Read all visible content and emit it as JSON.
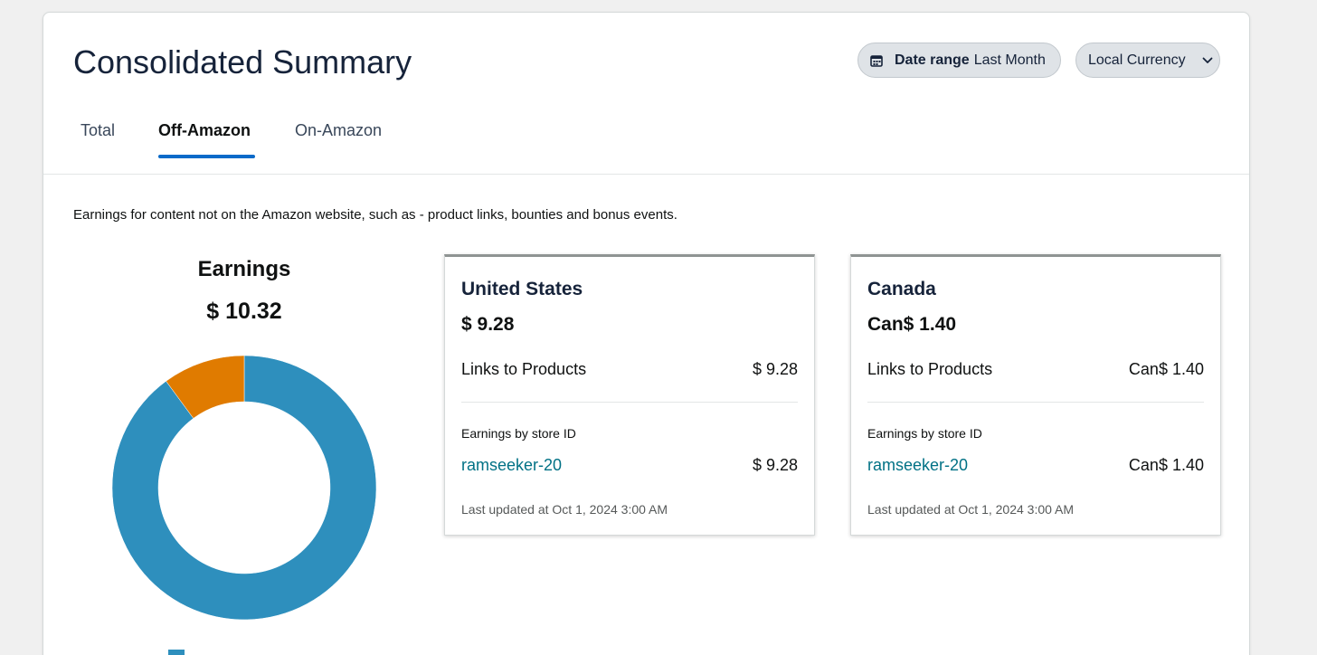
{
  "page": {
    "title": "Consolidated Summary",
    "date_range_label": "Date range",
    "date_range_value": "Last Month",
    "currency_label": "Local Currency"
  },
  "tabs": [
    {
      "label": "Total"
    },
    {
      "label": "Off-Amazon",
      "active": true
    },
    {
      "label": "On-Amazon"
    }
  ],
  "description": "Earnings for content not on the Amazon website, such as - product links, bounties and bonus events.",
  "earnings": {
    "title": "Earnings",
    "total": "$ 10.32"
  },
  "chart_data": {
    "type": "pie",
    "donut": true,
    "series": [
      {
        "value": 9.28,
        "color": "#2e8fbd"
      },
      {
        "value": 1.04,
        "color": "#e07b00"
      }
    ]
  },
  "cards": [
    {
      "name": "United States",
      "amount": "$ 9.28",
      "links_label": "Links to Products",
      "links_value": "$ 9.28",
      "store_label": "Earnings by store ID",
      "store_id": "ramseeker-20",
      "store_value": "$ 9.28",
      "updated": "Last updated at Oct 1, 2024 3:00 AM"
    },
    {
      "name": "Canada",
      "amount": "Can$ 1.40",
      "links_label": "Links to Products",
      "links_value": "Can$ 1.40",
      "store_label": "Earnings by store ID",
      "store_id": "ramseeker-20",
      "store_value": "Can$ 1.40",
      "updated": "Last updated at Oct 1, 2024 3:00 AM"
    }
  ],
  "icons": {
    "calendar": "calendar-icon",
    "chevron": "chevron-down-icon"
  }
}
